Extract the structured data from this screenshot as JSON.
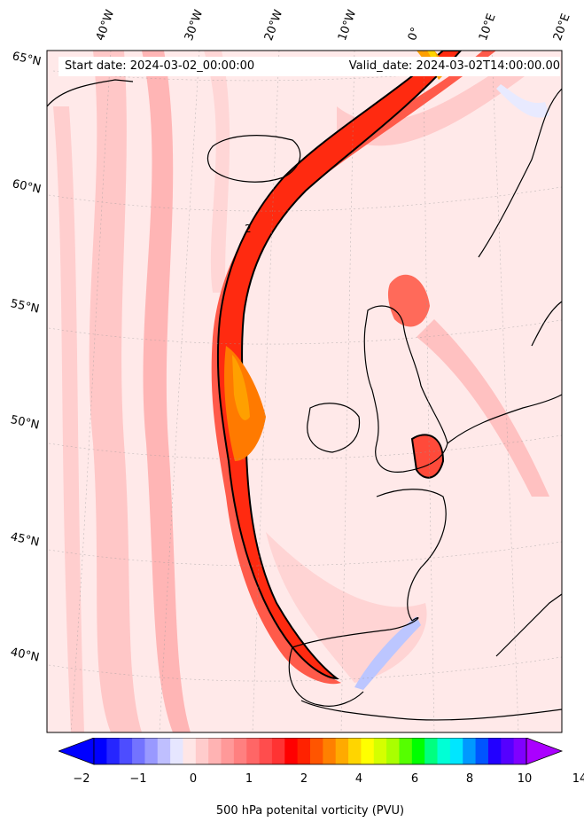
{
  "header": {
    "start_date": "Start date: 2024-03-02_00:00:00",
    "valid_date": "Valid_date: 2024-03-02T14:00:00.00"
  },
  "longitude_labels": [
    "40°W",
    "30°W",
    "20°W",
    "10°W",
    "0°",
    "10°E",
    "20°E"
  ],
  "latitude_labels": [
    "65°N",
    "60°N",
    "55°N",
    "50°N",
    "45°N",
    "40°N"
  ],
  "colorbar": {
    "label": "500 hPa potenital vorticity (PVU)",
    "tick_labels": [
      "−2",
      "−1",
      "0",
      "1",
      "2",
      "4",
      "6",
      "8",
      "10",
      "14"
    ],
    "colors": [
      "#0000ff",
      "#2626ff",
      "#4d4dff",
      "#7373ff",
      "#9999ff",
      "#bfbfff",
      "#e6e6ff",
      "#ffe6e6",
      "#ffcccc",
      "#ffb3b3",
      "#ff9999",
      "#ff8080",
      "#ff6666",
      "#ff4d4d",
      "#ff3333",
      "#ff0000",
      "#ff2200",
      "#ff5500",
      "#ff8000",
      "#ffaa00",
      "#ffd500",
      "#ffff00",
      "#d5ff00",
      "#aaff00",
      "#55ff00",
      "#00ff00",
      "#00ff80",
      "#00ffd5",
      "#00e6ff",
      "#0099ff",
      "#0055ff",
      "#2200ff",
      "#5500ff",
      "#8000ff"
    ],
    "extend_low_color": "#0000ff",
    "extend_high_color": "#aa00ff"
  },
  "contour_label": "2",
  "colors": {
    "background_field": "#ffe9e9",
    "coastline": "#000000",
    "pv_contour": "#000000"
  }
}
